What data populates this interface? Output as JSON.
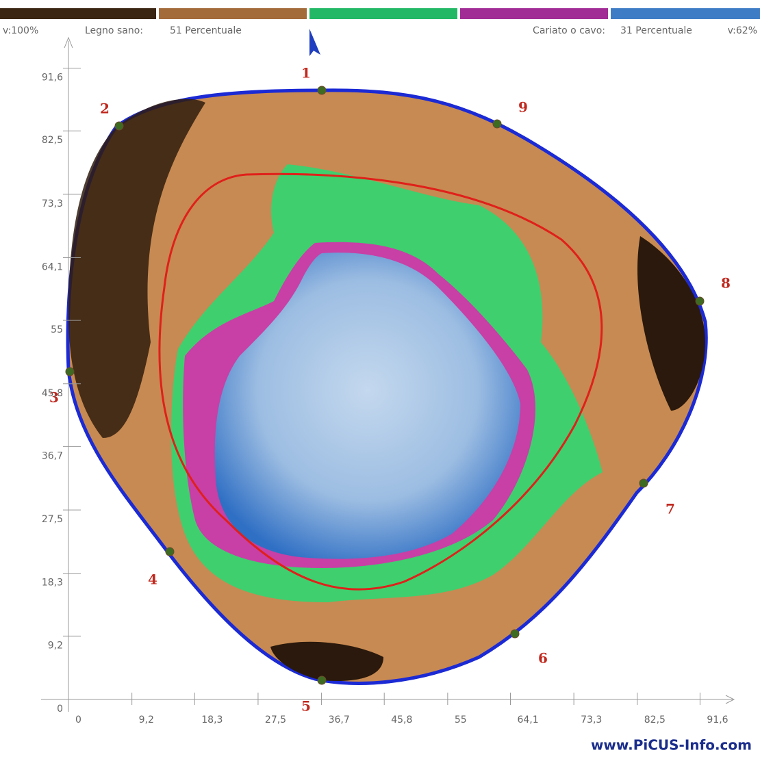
{
  "legend": {
    "max": "v:100%",
    "sound_label": "Legno sano:",
    "sound_value": "51 Percentuale",
    "decay_label": "Cariato o cavo:",
    "decay_value": "31 Percentuale",
    "min": "v:62%"
  },
  "axes": {
    "x_ticks": [
      0,
      {
        "value": 9.2,
        "label": "9,2"
      },
      {
        "value": 18.3,
        "label": "18,3"
      },
      {
        "value": 27.5,
        "label": "27,5"
      },
      {
        "value": 36.7,
        "label": "36,7"
      },
      {
        "value": 45.8,
        "label": "45,8"
      },
      55,
      {
        "value": 64.1,
        "label": "64,1"
      },
      {
        "value": 73.3,
        "label": "73,3"
      },
      {
        "value": 82.5,
        "label": "82,5"
      },
      {
        "value": 91.6,
        "label": "91,6"
      }
    ],
    "y_ticks": [
      0,
      {
        "value": 9.2,
        "label": "9,2"
      },
      {
        "value": 18.3,
        "label": "18,3"
      },
      {
        "value": 27.5,
        "label": "27,5"
      },
      {
        "value": 36.7,
        "label": "36,7"
      },
      {
        "value": 45.8,
        "label": "45,8"
      },
      55,
      {
        "value": 64.1,
        "label": "64,1"
      },
      {
        "value": 73.3,
        "label": "73,3"
      },
      {
        "value": 82.5,
        "label": "82,5"
      },
      {
        "value": 91.6,
        "label": "91,6"
      }
    ]
  },
  "sensors": [
    {
      "label": "1"
    },
    {
      "label": "2"
    },
    {
      "label": "3"
    },
    {
      "label": "4"
    },
    {
      "label": "5"
    },
    {
      "label": "6"
    },
    {
      "label": "7"
    },
    {
      "label": "8"
    },
    {
      "label": "9"
    }
  ],
  "watermark": "www.PiCUS-Info.com"
}
